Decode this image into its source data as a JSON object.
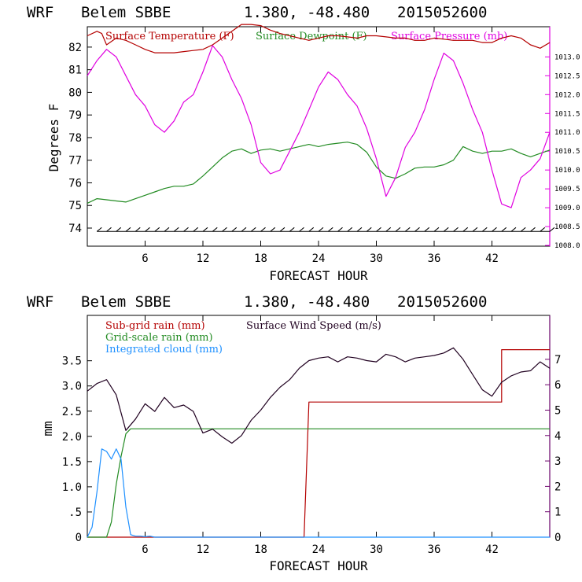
{
  "colors": {
    "temperature": "#b40000",
    "dewpoint": "#228b22",
    "pressure": "#e000e0",
    "subgrid": "#b40000",
    "gridscale": "#228b22",
    "cloud": "#1e90ff",
    "wind": "#200020",
    "axis": "#000000"
  },
  "chart_data": [
    {
      "type": "line",
      "header": {
        "model": "WRF",
        "station": "Belem SBBE",
        "coords": "1.380, -48.480",
        "run": "2015052600"
      },
      "xlabel": "FORECAST HOUR",
      "ylabel": "Degrees F",
      "xlim": [
        0,
        48
      ],
      "ylim": [
        73.2,
        82.9
      ],
      "y2lim": [
        1007.98,
        1013.8
      ],
      "x_ticks": [
        6,
        12,
        18,
        24,
        30,
        36,
        42
      ],
      "x_tick_labels": [
        "6",
        "12",
        "18",
        "24",
        "30",
        "36",
        "42"
      ],
      "y_ticks": [
        74,
        75,
        76,
        77,
        78,
        79,
        80,
        81,
        82
      ],
      "y_tick_labels": [
        "74",
        "75",
        "76",
        "77",
        "78",
        "79",
        "80",
        "81",
        "82"
      ],
      "y2_ticks": [
        1008.0,
        1008.5,
        1009.0,
        1009.5,
        1010.0,
        1010.5,
        1011.0,
        1011.5,
        1012.0,
        1012.5,
        1013.0
      ],
      "y2_tick_labels": [
        "1008.0",
        "1008.5",
        "1009.0",
        "1009.5",
        "1010.0",
        "1010.5",
        "1011.0",
        "1011.5",
        "1012.0",
        "1012.5",
        "1013.0"
      ],
      "series": [
        {
          "name": "Surface Temperature (F)",
          "axis": "left",
          "x": [
            0,
            1,
            1.5,
            2,
            3,
            4,
            5,
            6,
            7,
            8,
            9,
            10,
            11,
            12,
            13,
            14,
            15,
            16,
            17,
            18,
            19,
            20,
            21,
            22,
            23,
            24,
            25,
            26,
            27,
            28,
            29,
            30,
            31,
            32,
            33,
            34,
            35,
            36,
            37,
            38,
            39,
            40,
            41,
            42,
            43,
            44,
            45,
            46,
            47,
            48
          ],
          "y": [
            82.5,
            82.7,
            82.6,
            82.1,
            82.4,
            82.3,
            82.1,
            81.9,
            81.75,
            81.75,
            81.75,
            81.8,
            81.85,
            81.9,
            82.1,
            82.4,
            82.7,
            83.0,
            83.0,
            82.95,
            82.75,
            82.6,
            82.5,
            82.4,
            82.3,
            82.4,
            82.5,
            82.5,
            82.45,
            82.4,
            82.5,
            82.5,
            82.45,
            82.4,
            82.4,
            82.3,
            82.3,
            82.4,
            82.35,
            82.3,
            82.3,
            82.3,
            82.2,
            82.2,
            82.4,
            82.5,
            82.4,
            82.1,
            81.95,
            82.2
          ]
        },
        {
          "name": "Surface Dewpoint (F)",
          "axis": "left",
          "x": [
            0,
            1,
            2,
            3,
            4,
            5,
            6,
            7,
            8,
            9,
            10,
            11,
            12,
            13,
            14,
            15,
            16,
            17,
            18,
            19,
            20,
            21,
            22,
            23,
            24,
            25,
            26,
            27,
            28,
            29,
            30,
            31,
            32,
            33,
            34,
            35,
            36,
            37,
            38,
            39,
            40,
            41,
            42,
            43,
            44,
            45,
            46,
            47,
            48
          ],
          "y": [
            75.1,
            75.3,
            75.25,
            75.2,
            75.15,
            75.3,
            75.45,
            75.6,
            75.75,
            75.85,
            75.85,
            75.95,
            76.3,
            76.7,
            77.1,
            77.4,
            77.5,
            77.3,
            77.45,
            77.5,
            77.4,
            77.5,
            77.6,
            77.7,
            77.6,
            77.7,
            77.75,
            77.8,
            77.7,
            77.35,
            76.7,
            76.3,
            76.2,
            76.4,
            76.65,
            76.7,
            76.7,
            76.8,
            77.0,
            77.6,
            77.4,
            77.3,
            77.4,
            77.4,
            77.5,
            77.3,
            77.15,
            77.3,
            77.45
          ]
        },
        {
          "name": "Surface Pressure (mb)",
          "axis": "right",
          "x": [
            0,
            1,
            2,
            3,
            4,
            5,
            6,
            7,
            8,
            9,
            10,
            11,
            12,
            13,
            14,
            15,
            16,
            17,
            18,
            19,
            20,
            21,
            22,
            23,
            24,
            25,
            26,
            27,
            28,
            29,
            30,
            31,
            32,
            33,
            34,
            35,
            36,
            37,
            38,
            39,
            40,
            41,
            42,
            43,
            44,
            45,
            46,
            47,
            48
          ],
          "y": [
            1012.5,
            1012.9,
            1013.2,
            1013.0,
            1012.5,
            1012.0,
            1011.7,
            1011.2,
            1011.0,
            1011.3,
            1011.8,
            1012.0,
            1012.6,
            1013.3,
            1013.0,
            1012.4,
            1011.9,
            1011.2,
            1010.2,
            1009.9,
            1010.0,
            1010.5,
            1011.0,
            1011.6,
            1012.2,
            1012.6,
            1012.4,
            1012.0,
            1011.7,
            1011.1,
            1010.3,
            1009.3,
            1009.8,
            1010.6,
            1011.0,
            1011.6,
            1012.4,
            1013.1,
            1012.9,
            1012.3,
            1011.6,
            1011.0,
            1010.0,
            1009.1,
            1009.0,
            1009.8,
            1010.0,
            1010.3,
            1011.0
          ]
        }
      ],
      "wind_barbs": {
        "baseline_y": 73.85,
        "x_start": 1,
        "x_end": 48,
        "spacing_hours": 1
      }
    },
    {
      "type": "line",
      "header": {
        "model": "WRF",
        "station": "Belem SBBE",
        "coords": "1.380, -48.480",
        "run": "2015052600"
      },
      "xlabel": "FORECAST HOUR",
      "ylabel": "mm",
      "xlim": [
        0,
        48
      ],
      "ylim": [
        0,
        4.4
      ],
      "y2lim": [
        0,
        8.73
      ],
      "x_ticks": [
        6,
        12,
        18,
        24,
        30,
        36,
        42
      ],
      "x_tick_labels": [
        "6",
        "12",
        "18",
        "24",
        "30",
        "36",
        "42"
      ],
      "y_ticks": [
        0,
        0.5,
        1.0,
        1.5,
        2.0,
        2.5,
        3.0,
        3.5
      ],
      "y_tick_labels": [
        "0",
        ".5",
        "1.0",
        "1.5",
        "2.0",
        "2.5",
        "3.0",
        "3.5"
      ],
      "y2_ticks": [
        0,
        1,
        2,
        3,
        4,
        5,
        6,
        7
      ],
      "y2_tick_labels": [
        "0",
        "1",
        "2",
        "3",
        "4",
        "5",
        "6",
        "7"
      ],
      "series": [
        {
          "name": "Sub-grid rain (mm)",
          "axis": "left",
          "x": [
            0,
            22.5,
            23.0,
            43.0,
            43.0,
            48
          ],
          "y": [
            0,
            0,
            2.68,
            2.68,
            3.72,
            3.72
          ]
        },
        {
          "name": "Grid-scale rain (mm)",
          "axis": "left",
          "x": [
            0,
            2.0,
            2.5,
            3.0,
            3.5,
            4.0,
            4.5,
            48
          ],
          "y": [
            0,
            0,
            0.3,
            1.05,
            1.6,
            2.05,
            2.15,
            2.15
          ]
        },
        {
          "name": "Integrated cloud (mm)",
          "axis": "left",
          "x": [
            0,
            0.5,
            1.0,
            1.5,
            2.0,
            2.5,
            3.0,
            3.5,
            4.0,
            4.5,
            5.0,
            5.5,
            6.0,
            6.5,
            7.0,
            48
          ],
          "y": [
            0,
            0.2,
            0.9,
            1.75,
            1.7,
            1.55,
            1.75,
            1.55,
            0.6,
            0.05,
            0.02,
            0.02,
            0.01,
            0.02,
            0,
            0
          ]
        },
        {
          "name": "Surface Wind Speed (m/s)",
          "axis": "right",
          "x": [
            0,
            1,
            2,
            3,
            4,
            5,
            6,
            7,
            8,
            9,
            10,
            11,
            12,
            13,
            14,
            15,
            16,
            17,
            18,
            19,
            20,
            21,
            22,
            23,
            24,
            25,
            26,
            27,
            28,
            29,
            30,
            31,
            32,
            33,
            34,
            35,
            36,
            37,
            38,
            39,
            40,
            41,
            42,
            43,
            44,
            45,
            46,
            47,
            48
          ],
          "y": [
            5.75,
            6.05,
            6.2,
            5.6,
            4.2,
            4.65,
            5.25,
            4.95,
            5.5,
            5.1,
            5.2,
            4.95,
            4.1,
            4.25,
            3.95,
            3.7,
            4.0,
            4.6,
            5.0,
            5.5,
            5.9,
            6.2,
            6.65,
            6.95,
            7.05,
            7.1,
            6.9,
            7.1,
            7.05,
            6.95,
            6.9,
            7.2,
            7.1,
            6.9,
            7.05,
            7.1,
            7.15,
            7.25,
            7.45,
            7.0,
            6.4,
            5.8,
            5.55,
            6.1,
            6.35,
            6.5,
            6.55,
            6.9,
            6.65
          ]
        }
      ]
    }
  ]
}
